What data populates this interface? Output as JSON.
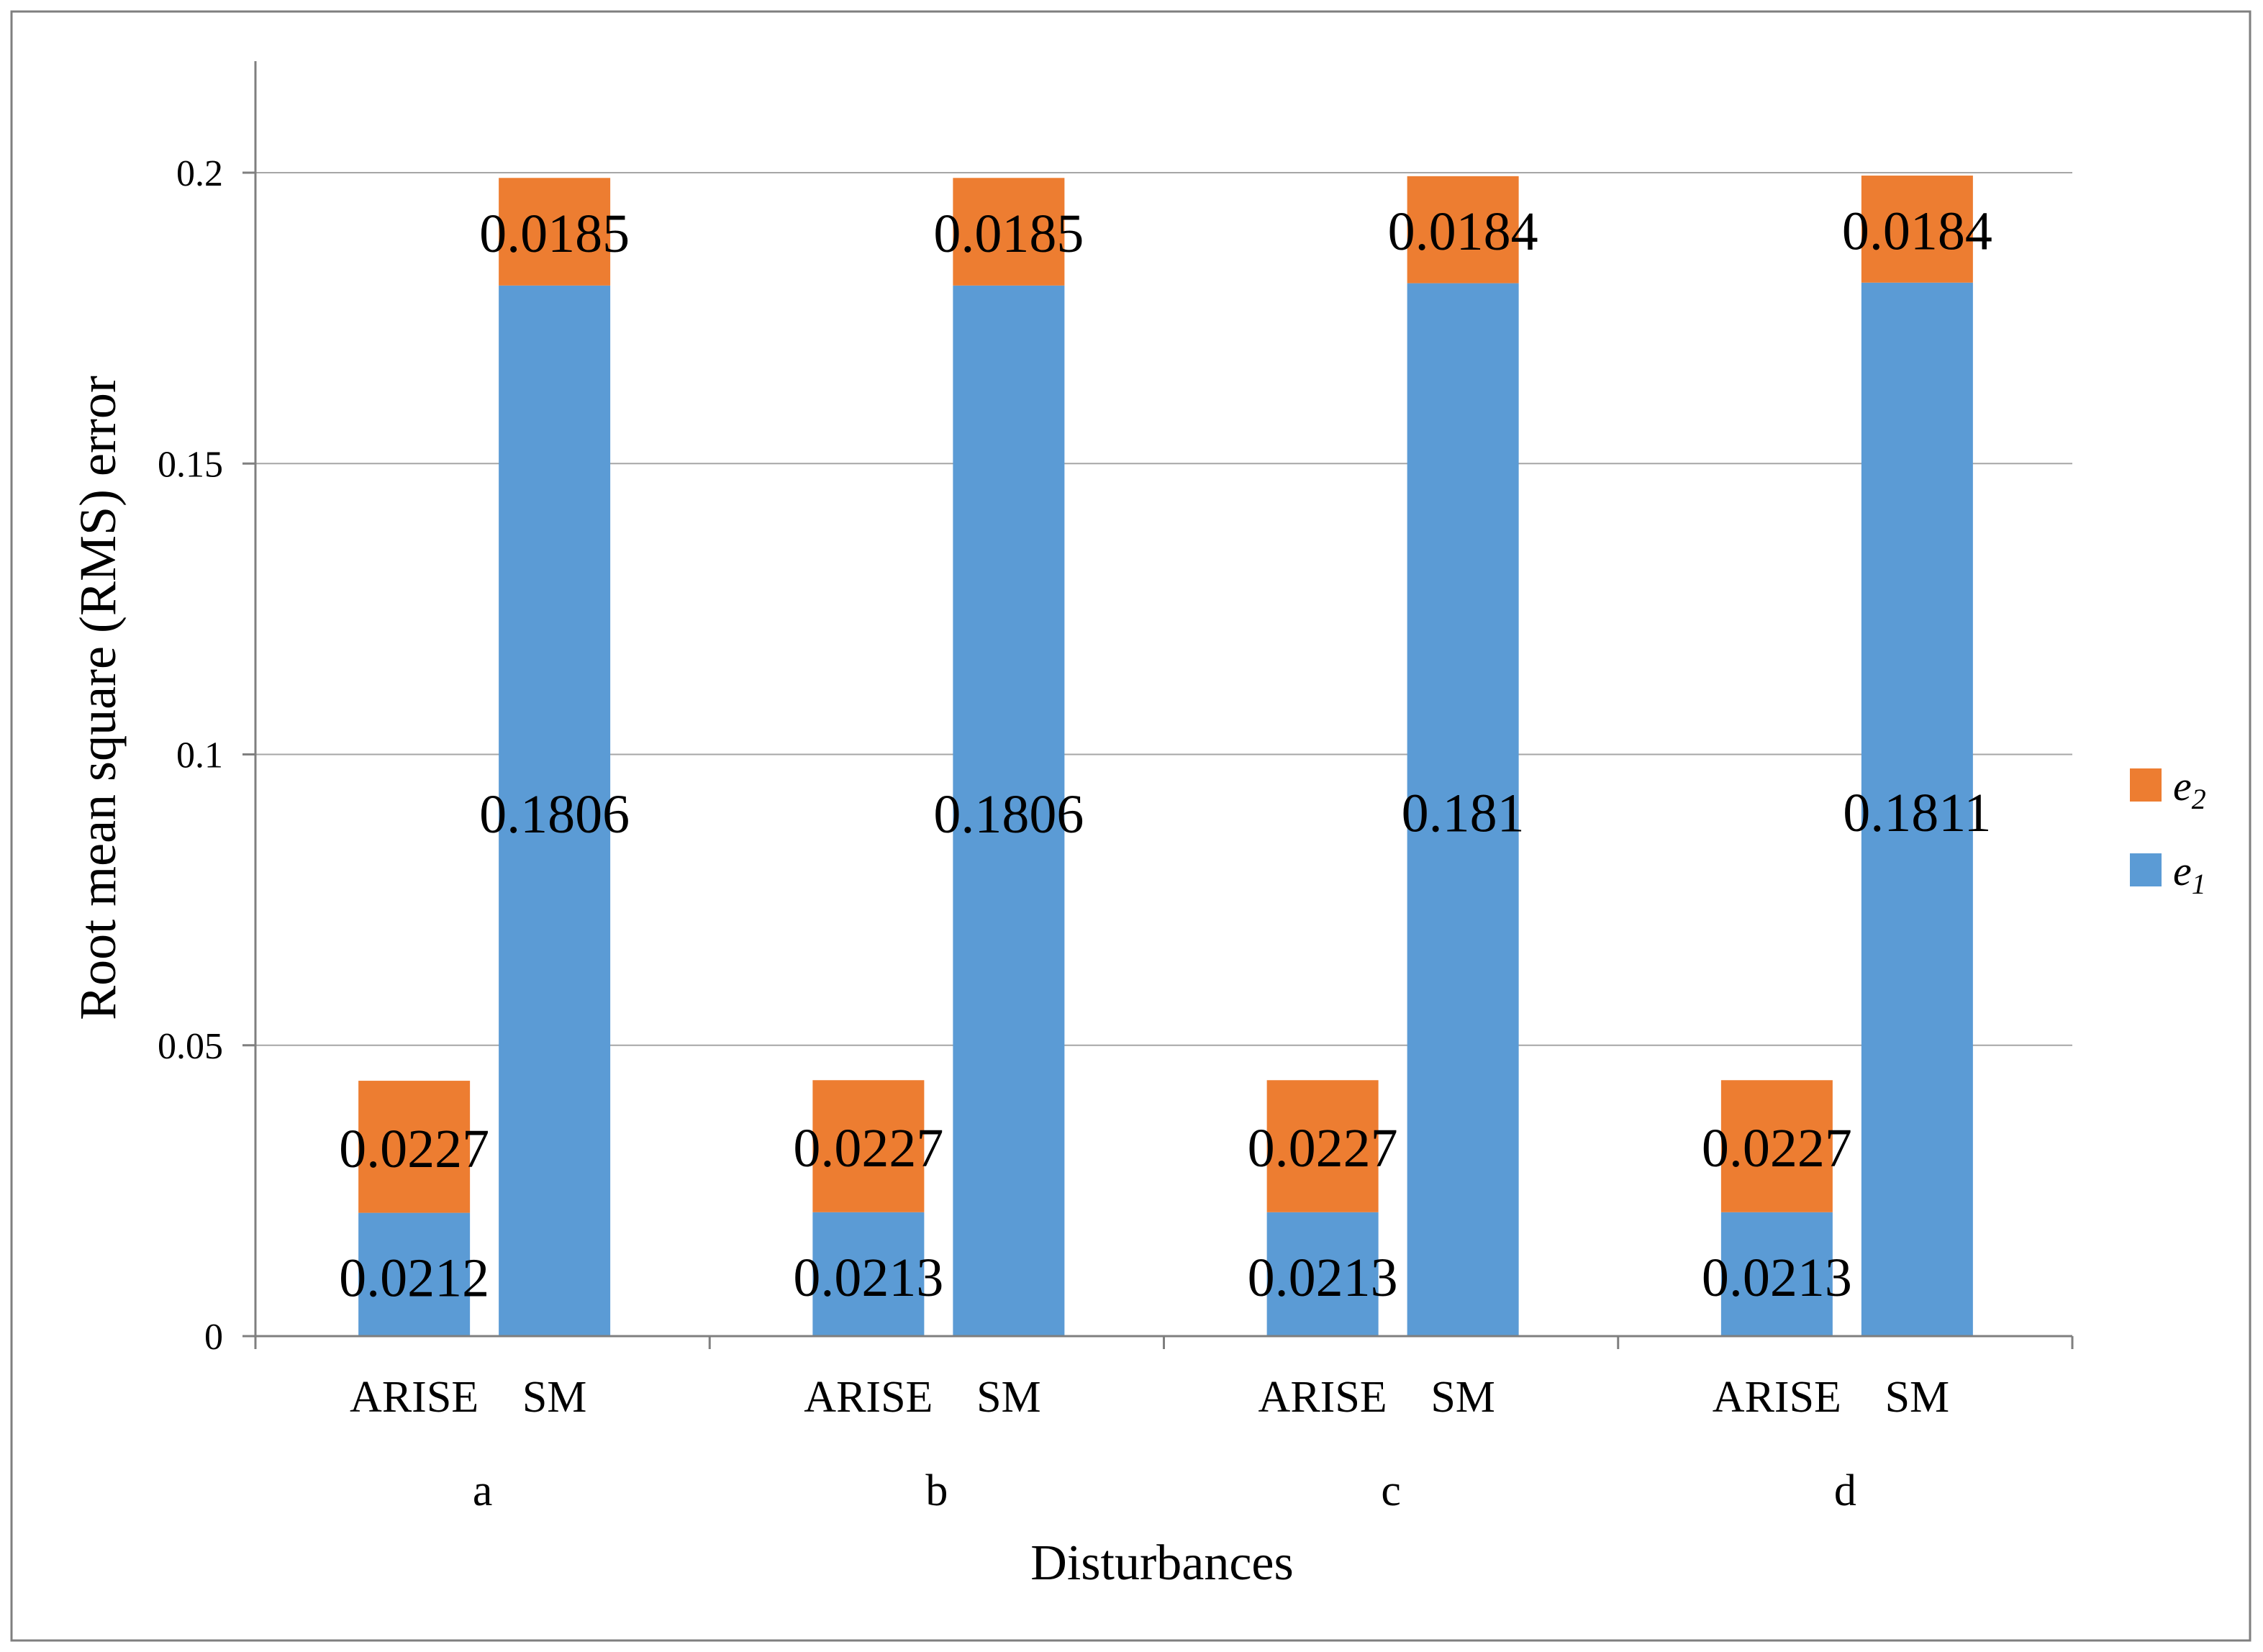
{
  "chart_data": {
    "type": "bar",
    "stacked": true,
    "xlabel": "Disturbances",
    "ylabel": "Root mean square (RMS) error",
    "ylim": [
      0,
      0.22
    ],
    "yticks": [
      "0",
      "0.05",
      "0.1",
      "0.15",
      "0.2"
    ],
    "grid": true,
    "legend_position": "right",
    "groups": [
      "a",
      "b",
      "c",
      "d"
    ],
    "methods": [
      "ARISE",
      "SM"
    ],
    "series": [
      {
        "name": "e1",
        "color": "#5B9BD5",
        "values": [
          [
            0.0212,
            0.1806
          ],
          [
            0.0213,
            0.1806
          ],
          [
            0.0213,
            0.181
          ],
          [
            0.0213,
            0.1811
          ]
        ],
        "labels": [
          [
            "0.0212",
            "0.1806"
          ],
          [
            "0.0213",
            "0.1806"
          ],
          [
            "0.0213",
            "0.181"
          ],
          [
            "0.0213",
            "0.1811"
          ]
        ]
      },
      {
        "name": "e2",
        "color": "#ED7D31",
        "values": [
          [
            0.0227,
            0.0185
          ],
          [
            0.0227,
            0.0185
          ],
          [
            0.0227,
            0.0184
          ],
          [
            0.0227,
            0.0184
          ]
        ],
        "labels": [
          [
            "0.0227",
            "0.0185"
          ],
          [
            "0.0227",
            "0.0185"
          ],
          [
            "0.0227",
            "0.0184"
          ],
          [
            "0.0227",
            "0.0184"
          ]
        ]
      }
    ],
    "legend": [
      {
        "series": "e2",
        "base": "e",
        "sub": "2",
        "color": "#ED7D31"
      },
      {
        "series": "e1",
        "base": "e",
        "sub": "1",
        "color": "#5B9BD5"
      }
    ],
    "frame_color": "#7F7F7F",
    "grid_color": "#A6A6A6"
  }
}
